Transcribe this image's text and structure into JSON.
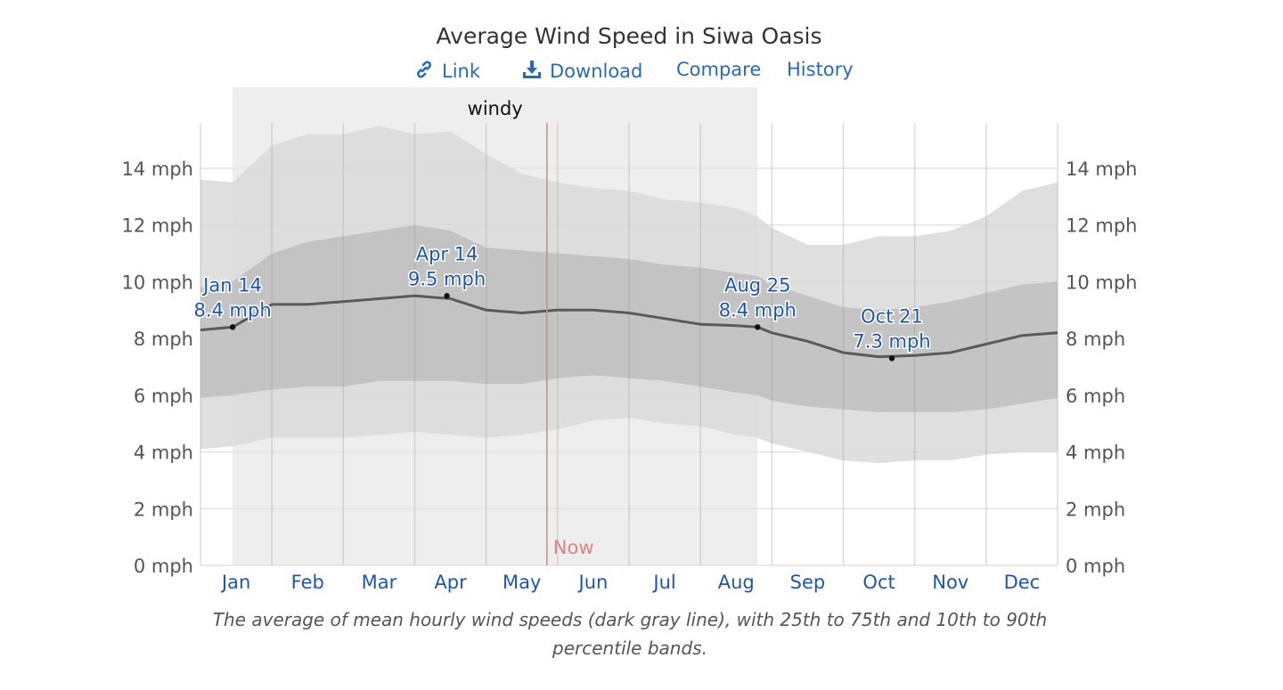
{
  "header": {
    "title": "Average Wind Speed in Siwa Oasis",
    "links": [
      {
        "label": "Link",
        "icon": "link-icon"
      },
      {
        "label": "Download",
        "icon": "download-icon"
      },
      {
        "label": "Compare"
      },
      {
        "label": "History"
      }
    ]
  },
  "caption": "The average of mean hourly wind speeds (dark gray line), with 25th to 75th and 10th to 90th percentile bands.",
  "colors": {
    "link": "#2a6bb0",
    "band_outer": "#d9d9d9",
    "band_inner": "#bdbdbd",
    "mean_line": "#5a5a5a",
    "season_shade": "#eeeeee",
    "now_line": "#e08080",
    "annotation": "#1f56a8",
    "month_label": "#1f56a8"
  },
  "chart_data": {
    "type": "area",
    "title": "Average Wind Speed in Siwa Oasis",
    "x_unit": "month",
    "y_unit": "mph",
    "ylim": [
      0,
      15.5
    ],
    "y_ticks": [
      0,
      2,
      4,
      6,
      8,
      10,
      12,
      14
    ],
    "y_tick_labels": [
      "0 mph",
      "2 mph",
      "4 mph",
      "6 mph",
      "8 mph",
      "10 mph",
      "12 mph",
      "14 mph"
    ],
    "months": [
      "Jan",
      "Feb",
      "Mar",
      "Apr",
      "May",
      "Jun",
      "Jul",
      "Aug",
      "Sep",
      "Oct",
      "Nov",
      "Dec"
    ],
    "grid": true,
    "x": [
      0.0,
      0.45,
      1.0,
      1.5,
      2.0,
      2.5,
      3.0,
      3.5,
      4.0,
      4.5,
      5.0,
      5.5,
      6.0,
      6.5,
      7.0,
      7.5,
      7.8,
      8.0,
      8.5,
      9.0,
      9.5,
      10.0,
      10.5,
      11.0,
      11.5,
      12.0
    ],
    "series": [
      {
        "name": "mean",
        "values": [
          8.3,
          8.4,
          9.2,
          9.2,
          9.3,
          9.4,
          9.5,
          9.4,
          9.0,
          8.9,
          9.0,
          9.0,
          8.9,
          8.7,
          8.5,
          8.45,
          8.4,
          8.2,
          7.9,
          7.5,
          7.35,
          7.4,
          7.5,
          7.8,
          8.1,
          8.2
        ]
      },
      {
        "name": "p25",
        "values": [
          5.9,
          6.0,
          6.2,
          6.3,
          6.3,
          6.5,
          6.5,
          6.5,
          6.4,
          6.4,
          6.6,
          6.7,
          6.6,
          6.5,
          6.3,
          6.1,
          6.0,
          5.8,
          5.6,
          5.5,
          5.4,
          5.4,
          5.4,
          5.5,
          5.7,
          5.9
        ]
      },
      {
        "name": "p75",
        "values": [
          9.8,
          10.0,
          11.0,
          11.4,
          11.6,
          11.8,
          12.0,
          11.8,
          11.2,
          11.1,
          11.0,
          10.9,
          10.8,
          10.6,
          10.5,
          10.3,
          10.2,
          9.9,
          9.5,
          9.1,
          9.0,
          9.1,
          9.3,
          9.6,
          9.9,
          10.0
        ]
      },
      {
        "name": "p10",
        "values": [
          4.1,
          4.2,
          4.5,
          4.5,
          4.5,
          4.6,
          4.7,
          4.6,
          4.5,
          4.6,
          4.8,
          5.1,
          5.2,
          5.0,
          4.9,
          4.6,
          4.5,
          4.3,
          4.0,
          3.7,
          3.6,
          3.7,
          3.7,
          3.9,
          4.0,
          4.0
        ]
      },
      {
        "name": "p90",
        "values": [
          13.6,
          13.5,
          14.8,
          15.2,
          15.2,
          15.5,
          15.2,
          15.3,
          14.5,
          13.8,
          13.5,
          13.3,
          13.2,
          12.9,
          12.8,
          12.6,
          12.3,
          11.9,
          11.3,
          11.3,
          11.6,
          11.6,
          11.8,
          12.3,
          13.2,
          13.5
        ]
      }
    ],
    "season": {
      "label": "windy",
      "start_month": 0.45,
      "end_month": 7.8
    },
    "now": {
      "label": "Now",
      "month": 4.85
    },
    "annotations": [
      {
        "date": "Jan 14",
        "value_label": "8.4 mph",
        "month": 0.45,
        "value": 8.4
      },
      {
        "date": "Apr 14",
        "value_label": "9.5 mph",
        "month": 3.45,
        "value": 9.5
      },
      {
        "date": "Aug 25",
        "value_label": "8.4 mph",
        "month": 7.8,
        "value": 8.4
      },
      {
        "date": "Oct 21",
        "value_label": "7.3 mph",
        "month": 9.68,
        "value": 7.3
      }
    ]
  }
}
